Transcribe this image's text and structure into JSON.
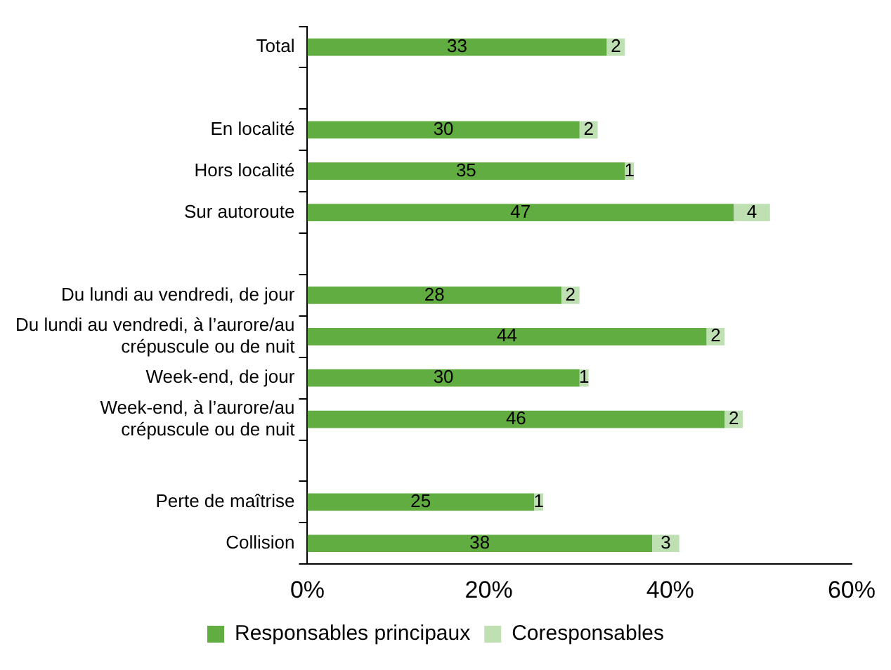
{
  "chart_data": {
    "type": "bar",
    "orientation": "horizontal",
    "stacked": true,
    "categories": [
      "Total",
      null,
      "En localité",
      "Hors localité",
      "Sur autoroute",
      null,
      "Du lundi au vendredi, de jour",
      "Du lundi au vendredi, à l’aurore/au\ncrépuscule ou de nuit",
      "Week-end, de jour",
      "Week-end, à l’aurore/au\ncrépuscule ou de nuit",
      null,
      "Perte de maîtrise",
      "Collision"
    ],
    "series": [
      {
        "name": "Responsables principaux",
        "color": "#62ad42",
        "values": [
          33,
          null,
          30,
          35,
          47,
          null,
          28,
          44,
          30,
          46,
          null,
          25,
          38
        ]
      },
      {
        "name": "Coresponsables",
        "color": "#bfe0b3",
        "values": [
          2,
          null,
          2,
          1,
          4,
          null,
          2,
          2,
          1,
          2,
          null,
          1,
          3
        ]
      }
    ],
    "xlim": [
      0,
      60
    ],
    "xticks": [
      {
        "value": 0,
        "label": "0%"
      },
      {
        "value": 20,
        "label": "20%"
      },
      {
        "value": 40,
        "label": "40%"
      },
      {
        "value": 60,
        "label": "60%"
      }
    ],
    "data_labels": true,
    "grid": false,
    "legend": "bottom"
  }
}
